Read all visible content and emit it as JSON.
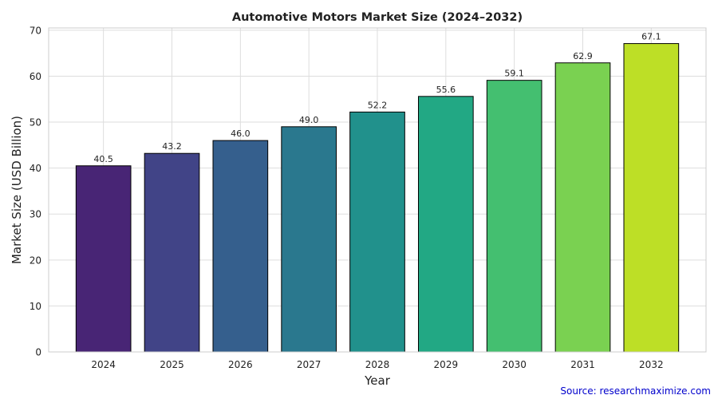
{
  "chart_data": {
    "type": "bar",
    "title": "Automotive Motors Market Size (2024–2032)",
    "xlabel": "Year",
    "ylabel": "Market Size (USD Billion)",
    "categories": [
      "2024",
      "2025",
      "2026",
      "2027",
      "2028",
      "2029",
      "2030",
      "2031",
      "2032"
    ],
    "values": [
      40.5,
      43.2,
      46.0,
      49.0,
      52.2,
      55.6,
      59.1,
      62.9,
      67.1
    ],
    "value_labels": [
      "40.5",
      "43.2",
      "46.0",
      "49.0",
      "52.2",
      "55.6",
      "59.1",
      "62.9",
      "67.1"
    ],
    "colors": [
      "#482575",
      "#414487",
      "#355f8d",
      "#2a788e",
      "#21918c",
      "#22a884",
      "#44bf70",
      "#7ad151",
      "#bddf26"
    ],
    "ylim": [
      0,
      70.5
    ],
    "yticks": [
      "0",
      "10",
      "20",
      "30",
      "40",
      "50",
      "60",
      "70"
    ],
    "grid": true,
    "bar_edge_color": "#000000"
  },
  "source_note": "Source: researchmaximize.com"
}
